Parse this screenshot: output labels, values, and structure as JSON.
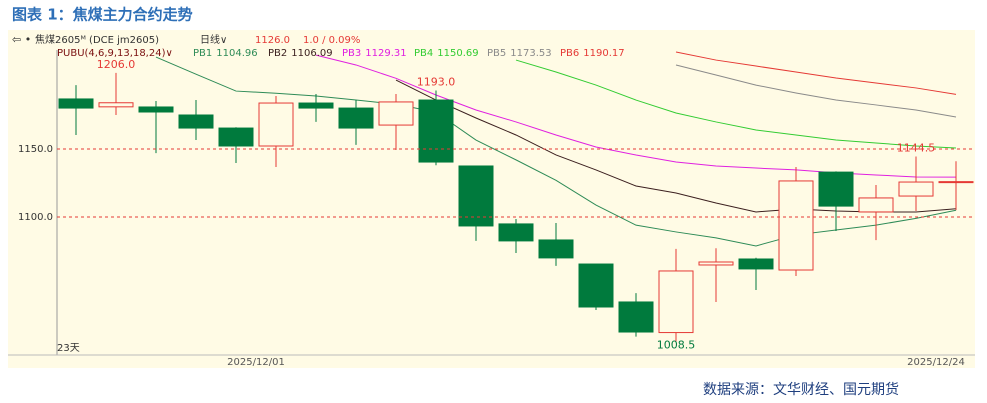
{
  "chart_data": {
    "type": "candlestick",
    "title": "图表 1：焦煤主力合约走势",
    "header": {
      "symbol": "焦煤2605ᴹ (DCE jm2605)",
      "period": "日线∨",
      "last_price": "1126.0",
      "change": "1.0 / 0.09%",
      "indicator": "PUBU(4,6,9,13,18,24)∨"
    },
    "bar_count": "23天",
    "source": "数据来源：文华财经、国元期货",
    "categories": [
      null,
      null,
      null,
      null,
      null,
      "2025/12/01",
      null,
      null,
      null,
      null,
      null,
      null,
      null,
      null,
      null,
      null,
      null,
      null,
      null,
      null,
      null,
      null,
      "2025/12/24"
    ],
    "open": [
      1186.8,
      1181,
      1180.9,
      1175,
      1165.4,
      1152.2,
      1183.8,
      1180.1,
      1167.6,
      1186,
      1137.5,
      1094.9,
      1083.1,
      1065.4,
      1037.5,
      1015,
      1064.7,
      1069.1,
      1061,
      1133,
      1103.7,
      1115.4,
      1125.7
    ],
    "high": [
      1197,
      1206,
      1185.3,
      1186,
      1166,
      1189,
      1190.4,
      1186,
      1190.4,
      1193,
      1137.5,
      1098.5,
      1095.6,
      1065.4,
      1044,
      1076.5,
      1077,
      1070,
      1136.8,
      1133.5,
      1123.5,
      1144.5,
      1141
    ],
    "low": [
      1160.3,
      1175,
      1147,
      1156.6,
      1139.7,
      1136.8,
      1169.9,
      1153,
      1149.3,
      1138,
      1082.4,
      1073.5,
      1064,
      1031.6,
      1012,
      1008.5,
      1037.5,
      1046.3,
      1056.6,
      1089.7,
      1083,
      1104.4,
      1105
    ],
    "close": [
      1180.1,
      1184,
      1177.2,
      1165.4,
      1152.2,
      1183.8,
      1180.1,
      1165.4,
      1184.6,
      1140.4,
      1093.4,
      1082.4,
      1069.9,
      1033.8,
      1015.4,
      1060.3,
      1066.9,
      1061.8,
      1126.5,
      1108,
      1114,
      1125.7,
      1126
    ],
    "high_labels": [
      null,
      "1206.0",
      null,
      null,
      null,
      null,
      null,
      null,
      null,
      "1193.0",
      null,
      null,
      null,
      null,
      null,
      null,
      null,
      null,
      null,
      null,
      null,
      "1144.5",
      null
    ],
    "low_labels": [
      null,
      null,
      null,
      null,
      null,
      null,
      null,
      null,
      null,
      null,
      null,
      null,
      null,
      null,
      null,
      "1008.5",
      null,
      null,
      null,
      null,
      null,
      null,
      null
    ],
    "up_color": "#e53935",
    "down_color": "#007a3d",
    "series": [
      {
        "name": "PB1",
        "color": "#2e8b57",
        "values": [
          null,
          null,
          1217.6,
          1205,
          1192.6,
          1191,
          1189,
          1186,
          1183,
          1177,
          1156.6,
          1142,
          1127,
          1108.8,
          1094,
          1089,
          1084.6,
          1078.7,
          1086.8,
          1090.4,
          1094,
          1099,
          1104.96
        ]
      },
      {
        "name": "PB2",
        "color": "#3b1f1f",
        "values": [
          null,
          null,
          null,
          null,
          null,
          null,
          null,
          null,
          1200.7,
          1186,
          1172.8,
          1160.3,
          1145.6,
          1134.6,
          1122.8,
          1117.6,
          1110.3,
          1103.7,
          1105.9,
          1104.4,
          1103.7,
          1103.7,
          1106.09
        ]
      },
      {
        "name": "PB3",
        "color": "#e020e0",
        "values": [
          null,
          null,
          null,
          null,
          null,
          null,
          1219,
          1211.8,
          1202,
          1189.7,
          1178.7,
          1169.9,
          1160.3,
          1151.5,
          1145.6,
          1140.4,
          1137.5,
          1136,
          1134.6,
          1132.4,
          1130.9,
          1129.4,
          1129.31
        ]
      },
      {
        "name": "PB4",
        "color": "#33cc33",
        "values": [
          null,
          null,
          null,
          null,
          null,
          null,
          null,
          null,
          null,
          null,
          null,
          1215.4,
          1206.6,
          1197,
          1186,
          1176.5,
          1169.9,
          1164,
          1160.3,
          1156.6,
          1154.4,
          1152.2,
          1150.69
        ]
      },
      {
        "name": "PB5",
        "color": "#8a8a8a",
        "values": [
          null,
          null,
          null,
          null,
          null,
          null,
          null,
          null,
          null,
          null,
          null,
          null,
          null,
          null,
          null,
          1211.8,
          1204.4,
          1197,
          1191.2,
          1186,
          1182.4,
          1178.7,
          1173.53
        ]
      },
      {
        "name": "PB6",
        "color": "#e53935",
        "values": [
          null,
          null,
          null,
          null,
          null,
          null,
          null,
          null,
          null,
          null,
          null,
          null,
          null,
          null,
          null,
          1221.3,
          1215.4,
          1211,
          1206.6,
          1202.2,
          1198.5,
          1194.9,
          1190.17
        ]
      }
    ],
    "ylim": [
      998.5,
      1222.8
    ],
    "yticks": [
      {
        "value": 1100,
        "label": "1100.0"
      },
      {
        "value": 1150,
        "label": "1150.0"
      }
    ],
    "grid": true
  }
}
